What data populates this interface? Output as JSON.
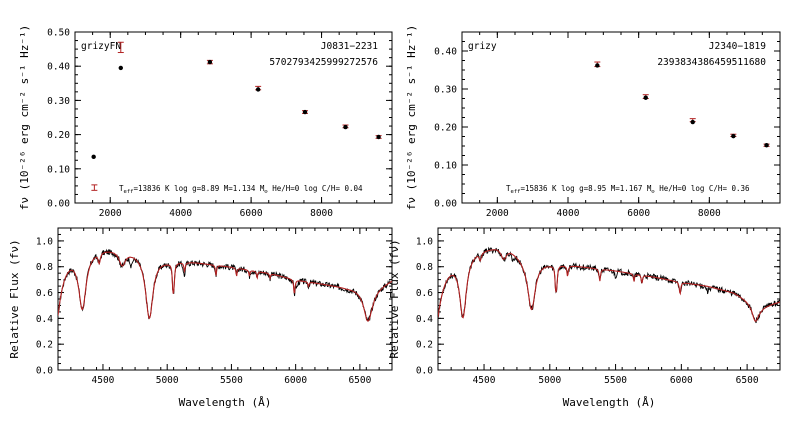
{
  "colors": {
    "observed": "#000000",
    "model": "#b22222",
    "axes": "#000000",
    "background": "#ffffff"
  },
  "chart_data": [
    {
      "type": "scatter",
      "panel": "top-left",
      "filters_label": "grizyFN",
      "object_name": "J0831−2231",
      "source_id": "5702793425999272576",
      "params_prefix": "T",
      "params_sub": "eff",
      "params_text": "=13836 K log g=8.89 M=1.134 M",
      "params_msub": "⊙",
      "params_tail": " He/H=0 log C/H= 0.04",
      "ylabel": "fν (10⁻²⁶ erg cm⁻² s⁻¹ Hz⁻¹)",
      "xlim": [
        1000,
        10000
      ],
      "ylim": [
        0,
        0.5
      ],
      "x_ticks": [
        2000,
        4000,
        6000,
        8000
      ],
      "x_tick_labels": [
        "2000",
        "4000",
        "6000",
        "8000"
      ],
      "y_ticks": [
        0,
        0.1,
        0.2,
        0.3,
        0.4,
        0.5
      ],
      "y_tick_labels": [
        "0.00",
        "0.10",
        "0.20",
        "0.30",
        "0.40",
        "0.50"
      ],
      "model_x": [
        1530,
        2300,
        4830,
        6200,
        7530,
        8680,
        9620
      ],
      "model_y": [
        0.135,
        0.395,
        0.412,
        0.332,
        0.266,
        0.222,
        0.193
      ],
      "observed_x": [
        2300,
        4830,
        6200,
        7530,
        8680,
        9620
      ],
      "observed_y": [
        0.455,
        0.412,
        0.336,
        0.266,
        0.224,
        0.193
      ],
      "observed_err": [
        0.015,
        0.005,
        0.005,
        0.004,
        0.004,
        0.004
      ],
      "legend_err_x": 1550,
      "legend_err_y": 0.045,
      "legend_err": 0.008
    },
    {
      "type": "scatter",
      "panel": "top-right",
      "filters_label": "grizy",
      "object_name": "J2340−1819",
      "source_id": "2393834386459511680",
      "params_prefix": "T",
      "params_sub": "eff",
      "params_text": "=15836 K log g=8.95 M=1.167 M",
      "params_msub": "⊙",
      "params_tail": " He/H=0 log C/H= 0.36",
      "ylabel": "fν (10⁻²⁶ erg cm⁻² s⁻¹ Hz⁻¹)",
      "xlim": [
        1000,
        10000
      ],
      "ylim": [
        0,
        0.45
      ],
      "x_ticks": [
        2000,
        4000,
        6000,
        8000
      ],
      "x_tick_labels": [
        "2000",
        "4000",
        "6000",
        "8000"
      ],
      "y_ticks": [
        0,
        0.1,
        0.2,
        0.3,
        0.4
      ],
      "y_tick_labels": [
        "0.00",
        "0.10",
        "0.20",
        "0.30",
        "0.40"
      ],
      "model_x": [
        4830,
        6200,
        7530,
        8680,
        9620
      ],
      "model_y": [
        0.362,
        0.277,
        0.213,
        0.176,
        0.152
      ],
      "observed_x": [
        4830,
        6200,
        7530,
        8680,
        9620
      ],
      "observed_y": [
        0.365,
        0.28,
        0.218,
        0.178,
        0.152
      ],
      "observed_err": [
        0.006,
        0.005,
        0.004,
        0.003,
        0.003
      ]
    },
    {
      "type": "line",
      "panel": "bottom-left",
      "xlabel": "Wavelength (Å)",
      "ylabel": "Relative Flux (fν)",
      "xlim": [
        4150,
        6750
      ],
      "ylim": [
        0,
        1.1
      ],
      "x_ticks": [
        4500,
        5000,
        5500,
        6000,
        6500
      ],
      "x_tick_labels": [
        "4500",
        "5000",
        "5500",
        "6000",
        "6500"
      ],
      "y_ticks": [
        0,
        0.2,
        0.4,
        0.6,
        0.8,
        1.0
      ],
      "y_tick_labels": [
        "0.0",
        "0.2",
        "0.4",
        "0.6",
        "0.8",
        "1.0"
      ],
      "continuum_x": [
        4150,
        4300,
        4500,
        4650,
        4800,
        5000,
        5200,
        5500,
        5800,
        6000,
        6200,
        6400,
        6600,
        6750
      ],
      "continuum_y": [
        0.95,
        0.95,
        0.96,
        0.95,
        0.91,
        0.85,
        0.84,
        0.8,
        0.75,
        0.7,
        0.67,
        0.64,
        0.63,
        0.7
      ],
      "lines_center": [
        4101,
        4340,
        4471,
        4650,
        4861,
        5045,
        5053,
        5135,
        5380,
        5540,
        5640,
        5700,
        5800,
        5990,
        6100,
        6563
      ],
      "lines_depth": [
        0.9,
        0.45,
        0.08,
        0.12,
        0.54,
        0.22,
        0.16,
        0.08,
        0.1,
        0.08,
        0.06,
        0.07,
        0.05,
        0.16,
        0.05,
        0.4
      ],
      "lines_width": [
        60,
        35,
        10,
        30,
        35,
        6,
        6,
        6,
        5,
        5,
        5,
        5,
        5,
        6,
        5,
        40
      ],
      "observed_extra_dips_x": [
        4720,
        5130,
        6010
      ],
      "observed_extra_dips_depth": [
        0.08,
        0.05,
        0.05
      ]
    },
    {
      "type": "line",
      "panel": "bottom-right",
      "xlabel": "Wavelength (Å)",
      "ylabel": "Relative Flux (fν)",
      "xlim": [
        4150,
        6750
      ],
      "ylim": [
        0,
        1.1
      ],
      "x_ticks": [
        4500,
        5000,
        5500,
        6000,
        6500
      ],
      "x_tick_labels": [
        "4500",
        "5000",
        "5500",
        "6000",
        "6500"
      ],
      "y_ticks": [
        0,
        0.2,
        0.4,
        0.6,
        0.8,
        1.0
      ],
      "y_tick_labels": [
        "0.0",
        "0.2",
        "0.4",
        "0.6",
        "0.8",
        "1.0"
      ],
      "continuum_x": [
        4150,
        4300,
        4450,
        4600,
        4700,
        4800,
        5000,
        5200,
        5500,
        5800,
        6000,
        6200,
        6400,
        6600,
        6750
      ],
      "continuum_y": [
        0.86,
        0.89,
        0.95,
        0.97,
        0.95,
        0.88,
        0.83,
        0.81,
        0.77,
        0.72,
        0.68,
        0.65,
        0.6,
        0.49,
        0.53
      ],
      "lines_center": [
        4101,
        4340,
        4471,
        4650,
        4861,
        5045,
        5053,
        5135,
        5380,
        5640,
        5700,
        5990,
        6563
      ],
      "lines_depth": [
        0.85,
        0.5,
        0.06,
        0.08,
        0.45,
        0.2,
        0.14,
        0.1,
        0.12,
        0.08,
        0.09,
        0.14,
        0.26
      ],
      "lines_width": [
        60,
        30,
        10,
        25,
        35,
        6,
        6,
        6,
        6,
        5,
        5,
        6,
        30
      ],
      "observed_extra_dips_x": [
        4720,
        5500,
        6200
      ],
      "observed_extra_dips_depth": [
        0.05,
        0.04,
        0.04
      ]
    }
  ]
}
